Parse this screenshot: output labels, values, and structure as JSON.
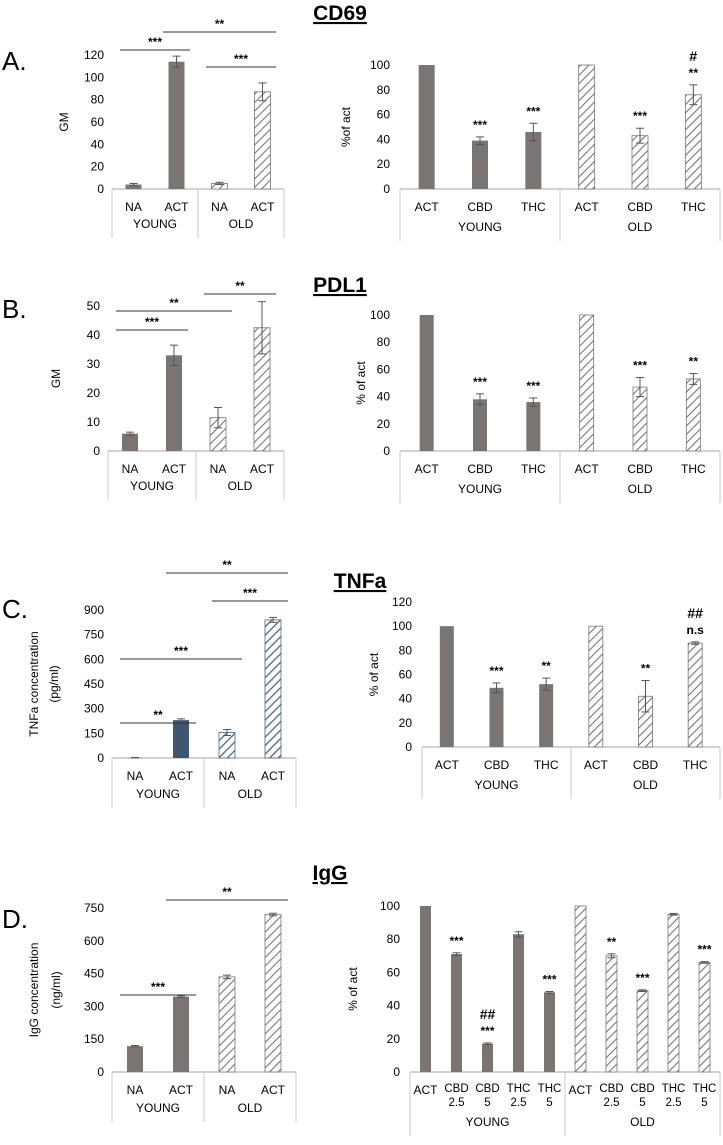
{
  "figure": {
    "panel_letters": [
      "A.",
      "B.",
      "C.",
      "D."
    ],
    "titles": [
      "CD69",
      "PDL1",
      "TNFa",
      "IgG"
    ]
  },
  "colors": {
    "bar": "#7b7474",
    "bar_dark_blue": "#3f5670",
    "hatch_stroke": "#7b7474",
    "hatch_blue_stroke": "#4d6483",
    "axis": "#a6a6a6",
    "text": "#000000"
  },
  "chart_data": [
    {
      "id": "A-left",
      "panel": "A.",
      "title": "CD69",
      "type": "bar",
      "ylabel": "GM",
      "ylim": [
        0,
        120
      ],
      "yticks": [
        0,
        20,
        40,
        60,
        80,
        100,
        120
      ],
      "categories": [
        "NA",
        "ACT",
        "NA",
        "ACT"
      ],
      "groups": [
        {
          "label": "YOUNG",
          "span": [
            0,
            1
          ]
        },
        {
          "label": "OLD",
          "span": [
            2,
            3
          ]
        }
      ],
      "values": [
        4,
        114,
        5,
        87
      ],
      "errors": [
        1,
        5,
        1,
        8
      ],
      "fills": [
        "solid",
        "solid",
        "hatch",
        "hatch"
      ],
      "comparisons": [
        {
          "from": 0,
          "to": 1,
          "label": "***"
        },
        {
          "from": 1,
          "to": 3,
          "label": "**"
        },
        {
          "from": 2,
          "to": 3,
          "label": "***"
        }
      ]
    },
    {
      "id": "A-right",
      "panel": "A.",
      "type": "bar",
      "ylabel": "%of act",
      "ylim": [
        0,
        100
      ],
      "yticks": [
        0,
        20,
        40,
        60,
        80,
        100
      ],
      "categories": [
        "ACT",
        "CBD",
        "THC",
        "ACT",
        "CBD",
        "THC"
      ],
      "groups": [
        {
          "label": "YOUNG",
          "span": [
            0,
            2
          ]
        },
        {
          "label": "OLD",
          "span": [
            3,
            5
          ]
        }
      ],
      "values": [
        100,
        39,
        46,
        100,
        43,
        76
      ],
      "errors": [
        0,
        3,
        7,
        0,
        6,
        8
      ],
      "fills": [
        "solid",
        "solid",
        "solid",
        "hatch",
        "hatch",
        "hatch"
      ],
      "annotations": [
        {
          "bar": 1,
          "label": "***"
        },
        {
          "bar": 2,
          "label": "***"
        },
        {
          "bar": 4,
          "label": "***"
        },
        {
          "bar": 5,
          "label": "**"
        },
        {
          "bar": 5,
          "label": "#"
        }
      ]
    },
    {
      "id": "B-left",
      "panel": "B.",
      "title": "PDL1",
      "type": "bar",
      "ylabel": "GM",
      "ylim": [
        0,
        50
      ],
      "yticks": [
        0,
        10,
        20,
        30,
        40,
        50
      ],
      "categories": [
        "NA",
        "ACT",
        "NA",
        "ACT"
      ],
      "groups": [
        {
          "label": "YOUNG",
          "span": [
            0,
            1
          ]
        },
        {
          "label": "OLD",
          "span": [
            2,
            3
          ]
        }
      ],
      "values": [
        6,
        33,
        11.5,
        42.5
      ],
      "errors": [
        0.5,
        3.5,
        3.5,
        9
      ],
      "fills": [
        "solid",
        "solid",
        "hatch",
        "hatch"
      ],
      "comparisons": [
        {
          "from": 0,
          "to": 1,
          "label": "***"
        },
        {
          "from": 0,
          "to": 2,
          "label": "**"
        },
        {
          "from": 2,
          "to": 3,
          "label": "**"
        }
      ]
    },
    {
      "id": "B-right",
      "panel": "B.",
      "type": "bar",
      "ylabel": "% of act",
      "ylim": [
        0,
        100
      ],
      "yticks": [
        0,
        20,
        40,
        60,
        80,
        100
      ],
      "categories": [
        "ACT",
        "CBD",
        "THC",
        "ACT",
        "CBD",
        "THC"
      ],
      "groups": [
        {
          "label": "YOUNG",
          "span": [
            0,
            2
          ]
        },
        {
          "label": "OLD",
          "span": [
            3,
            5
          ]
        }
      ],
      "values": [
        100,
        38,
        36,
        100,
        47,
        53
      ],
      "errors": [
        0,
        4,
        3,
        0,
        7,
        4
      ],
      "fills": [
        "solid",
        "solid",
        "solid",
        "hatch",
        "hatch",
        "hatch"
      ],
      "annotations": [
        {
          "bar": 1,
          "label": "***"
        },
        {
          "bar": 2,
          "label": "***"
        },
        {
          "bar": 4,
          "label": "***"
        },
        {
          "bar": 5,
          "label": "**"
        }
      ]
    },
    {
      "id": "C-left",
      "panel": "C.",
      "title": "TNFa",
      "type": "bar",
      "ylabel": "TNFa concentration (pg/ml)",
      "ylabel_lines": [
        "TNFa concentration",
        "(pg/ml)"
      ],
      "ylim": [
        0,
        900
      ],
      "yticks": [
        0,
        150,
        300,
        450,
        600,
        750,
        900
      ],
      "categories": [
        "NA",
        "ACT",
        "NA",
        "ACT"
      ],
      "groups": [
        {
          "label": "YOUNG",
          "span": [
            0,
            1
          ]
        },
        {
          "label": "OLD",
          "span": [
            2,
            3
          ]
        }
      ],
      "values": [
        2,
        230,
        155,
        840
      ],
      "errors": [
        1,
        8,
        18,
        15
      ],
      "fills": [
        "solid",
        "solid-blue",
        "hatch-blue",
        "hatch-blue"
      ],
      "comparisons": [
        {
          "from": 0,
          "to": 1,
          "label": "**"
        },
        {
          "from": 0,
          "to": 2,
          "label": "***"
        },
        {
          "from": 2,
          "to": 3,
          "label": "***"
        },
        {
          "from": 1,
          "to": 3,
          "label": "**"
        }
      ]
    },
    {
      "id": "C-right",
      "panel": "C.",
      "type": "bar",
      "ylabel": "% of act",
      "ylim": [
        0,
        120
      ],
      "yticks": [
        0,
        20,
        40,
        60,
        80,
        100,
        120
      ],
      "categories": [
        "ACT",
        "CBD",
        "THC",
        "ACT",
        "CBD",
        "THC"
      ],
      "groups": [
        {
          "label": "YOUNG",
          "span": [
            0,
            2
          ]
        },
        {
          "label": "OLD",
          "span": [
            3,
            5
          ]
        }
      ],
      "values": [
        100,
        49,
        52,
        100,
        42,
        86
      ],
      "errors": [
        0,
        4,
        5,
        0,
        13,
        1
      ],
      "fills": [
        "solid",
        "solid",
        "solid",
        "hatch",
        "hatch",
        "hatch"
      ],
      "annotations": [
        {
          "bar": 1,
          "label": "***"
        },
        {
          "bar": 2,
          "label": "**"
        },
        {
          "bar": 4,
          "label": "**"
        },
        {
          "bar": 5,
          "label": "n.s"
        },
        {
          "bar": 5,
          "label": "##"
        }
      ]
    },
    {
      "id": "D-left",
      "panel": "D.",
      "title": "IgG",
      "type": "bar",
      "ylabel": "IgG concentration (ng/ml)",
      "ylabel_lines": [
        "IgG concentration",
        "(ng/ml)"
      ],
      "ylim": [
        0,
        750
      ],
      "yticks": [
        0,
        150,
        300,
        450,
        600,
        750
      ],
      "categories": [
        "NA",
        "ACT",
        "NA",
        "ACT"
      ],
      "groups": [
        {
          "label": "YOUNG",
          "span": [
            0,
            1
          ]
        },
        {
          "label": "OLD",
          "span": [
            2,
            3
          ]
        }
      ],
      "values": [
        118,
        345,
        435,
        720
      ],
      "errors": [
        3,
        4,
        8,
        6
      ],
      "fills": [
        "solid",
        "solid",
        "hatch",
        "hatch"
      ],
      "comparisons": [
        {
          "from": 0,
          "to": 1,
          "label": "***"
        },
        {
          "from": 1,
          "to": 3,
          "label": "**"
        }
      ]
    },
    {
      "id": "D-right",
      "panel": "D.",
      "type": "bar",
      "ylabel": "% of act",
      "ylim": [
        0,
        100
      ],
      "yticks": [
        0,
        20,
        40,
        60,
        80,
        100
      ],
      "categories": [
        "ACT",
        "CBD\n2.5",
        "CBD\n5",
        "THC\n2.5",
        "THC\n5",
        "ACT",
        "CBD\n2.5",
        "CBD\n5",
        "THC\n2.5",
        "THC\n5"
      ],
      "groups": [
        {
          "label": "YOUNG",
          "span": [
            0,
            4
          ]
        },
        {
          "label": "OLD",
          "span": [
            5,
            9
          ]
        }
      ],
      "values": [
        100,
        71,
        17,
        83,
        48,
        100,
        70,
        49,
        95,
        66
      ],
      "errors": [
        0,
        0.8,
        0.5,
        1.5,
        0.5,
        0,
        1.2,
        0.5,
        0.5,
        0.5
      ],
      "fills": [
        "solid",
        "solid",
        "solid",
        "solid",
        "solid",
        "hatch",
        "hatch",
        "hatch",
        "hatch",
        "hatch"
      ],
      "annotations": [
        {
          "bar": 1,
          "label": "***"
        },
        {
          "bar": 2,
          "label": "***"
        },
        {
          "bar": 2,
          "label": "##"
        },
        {
          "bar": 4,
          "label": "***"
        },
        {
          "bar": 6,
          "label": "**"
        },
        {
          "bar": 7,
          "label": "***"
        },
        {
          "bar": 9,
          "label": "***"
        }
      ]
    }
  ]
}
